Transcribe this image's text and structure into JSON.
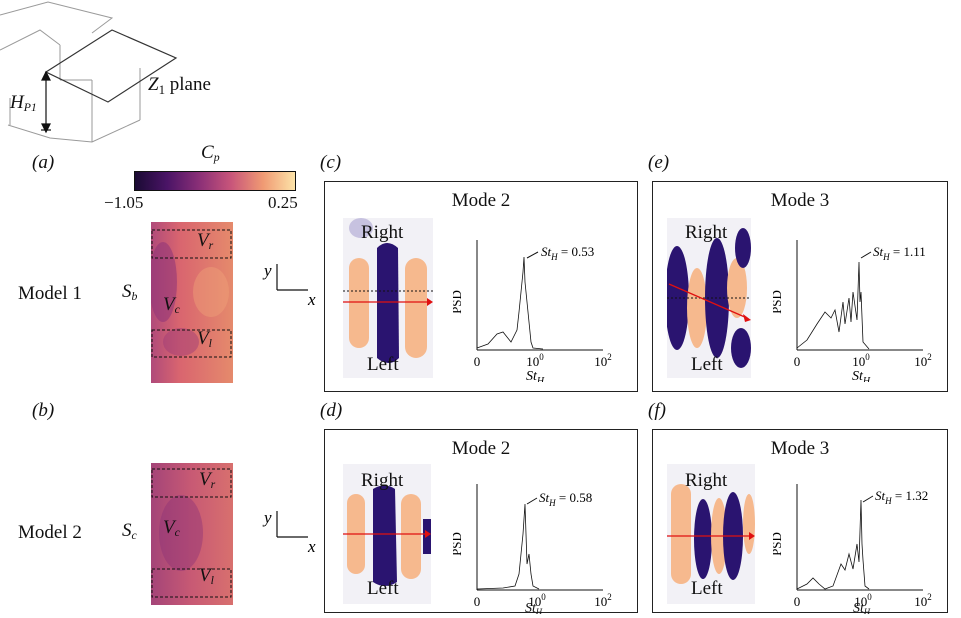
{
  "schematic": {
    "height_label_main": "H",
    "height_label_sub": "P1",
    "plane_label_main": "Z",
    "plane_label_sub": "1",
    "plane_label_suffix": " plane"
  },
  "panel_labels": {
    "a": "(a)",
    "b": "(b)",
    "c": "(c)",
    "d": "(d)",
    "e": "(e)",
    "f": "(f)"
  },
  "colorbar": {
    "label_main": "C",
    "label_sub": "p",
    "min_label": "−1.05",
    "max_label": "0.25",
    "colors": [
      "#1a0a33",
      "#4a1466",
      "#8a2f77",
      "#c8557a",
      "#f09a73",
      "#fce3a8"
    ]
  },
  "rows": [
    {
      "model_label": "Model 1",
      "surface_main": "S",
      "surface_sub": "b",
      "vr_main": "V",
      "vr_sub": "r",
      "vc_main": "V",
      "vc_sub": "c",
      "vl_main": "V",
      "vl_sub": "l"
    },
    {
      "model_label": "Model 2",
      "surface_main": "S",
      "surface_sub": "c",
      "vr_main": "V",
      "vr_sub": "r",
      "vc_main": "V",
      "vc_sub": "c",
      "vl_main": "V",
      "vl_sub": "l"
    }
  ],
  "axes": {
    "x": "x",
    "y": "y"
  },
  "mode_panels": [
    {
      "title": "Mode 2",
      "right_label": "Right",
      "left_label": "Left",
      "peak_main": "St",
      "peak_sub": "H",
      "peak_value": "= 0.53",
      "psd_label": "PSD",
      "x_ticks": [
        "0",
        "10",
        "10"
      ],
      "x_tick_exps": [
        "",
        "0",
        "2"
      ],
      "xlabel_main": "St",
      "xlabel_sub": "H"
    },
    {
      "title": "Mode 2",
      "right_label": "Right",
      "left_label": "Left",
      "peak_main": "St",
      "peak_sub": "H",
      "peak_value": "= 0.58",
      "psd_label": "PSD",
      "x_ticks": [
        "0",
        "10",
        "10"
      ],
      "x_tick_exps": [
        "",
        "0",
        "2"
      ],
      "xlabel_main": "St",
      "xlabel_sub": "H"
    },
    {
      "title": "Mode 3",
      "right_label": "Right",
      "left_label": "Left",
      "peak_main": "St",
      "peak_sub": "H",
      "peak_value": "= 1.11",
      "psd_label": "PSD",
      "x_ticks": [
        "0",
        "10",
        "10"
      ],
      "x_tick_exps": [
        "",
        "0",
        "2"
      ],
      "xlabel_main": "St",
      "xlabel_sub": "H"
    },
    {
      "title": "Mode 3",
      "right_label": "Right",
      "left_label": "Left",
      "peak_main": "St",
      "peak_sub": "H",
      "peak_value": "= 1.32",
      "psd_label": "PSD",
      "x_ticks": [
        "0",
        "10",
        "10"
      ],
      "x_tick_exps": [
        "",
        "0",
        "2"
      ],
      "xlabel_main": "St",
      "xlabel_sub": "H"
    }
  ]
}
